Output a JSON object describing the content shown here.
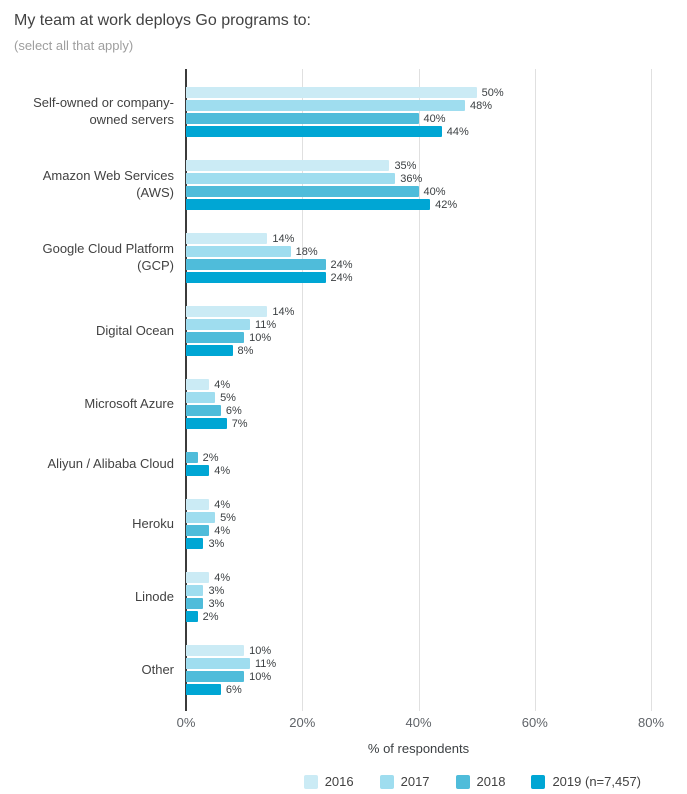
{
  "header": {
    "title": "My team at work deploys Go programs to:",
    "subtitle": "(select all that apply)"
  },
  "chart_data": {
    "type": "bar",
    "orientation": "horizontal",
    "title": "My team at work deploys Go programs to:",
    "subtitle": "(select all that apply)",
    "xlabel": "% of respondents",
    "xlim": [
      0,
      80
    ],
    "x_ticks": [
      0,
      20,
      40,
      60,
      80
    ],
    "x_tick_labels": [
      "0%",
      "20%",
      "40%",
      "60%",
      "80%"
    ],
    "grid": "vertical-only",
    "legend_position": "bottom-right",
    "value_label_format": "percent",
    "categories": [
      "Self-owned or company-owned servers",
      "Amazon Web Services (AWS)",
      "Google Cloud Platform (GCP)",
      "Digital Ocean",
      "Microsoft Azure",
      "Aliyun / Alibaba Cloud",
      "Heroku",
      "Linode",
      "Other"
    ],
    "series": [
      {
        "name": "2016",
        "color": "#CBEBF5",
        "values": [
          50,
          35,
          14,
          14,
          4,
          null,
          4,
          4,
          10
        ]
      },
      {
        "name": "2017",
        "color": "#9FDDEF",
        "values": [
          48,
          36,
          18,
          11,
          5,
          null,
          5,
          3,
          11
        ]
      },
      {
        "name": "2018",
        "color": "#4FBCDA",
        "values": [
          40,
          40,
          24,
          10,
          6,
          2,
          4,
          3,
          10
        ]
      },
      {
        "name": "2019 (n=7,457)",
        "color": "#00A6D4",
        "values": [
          44,
          42,
          24,
          8,
          7,
          4,
          3,
          2,
          6
        ]
      }
    ]
  }
}
